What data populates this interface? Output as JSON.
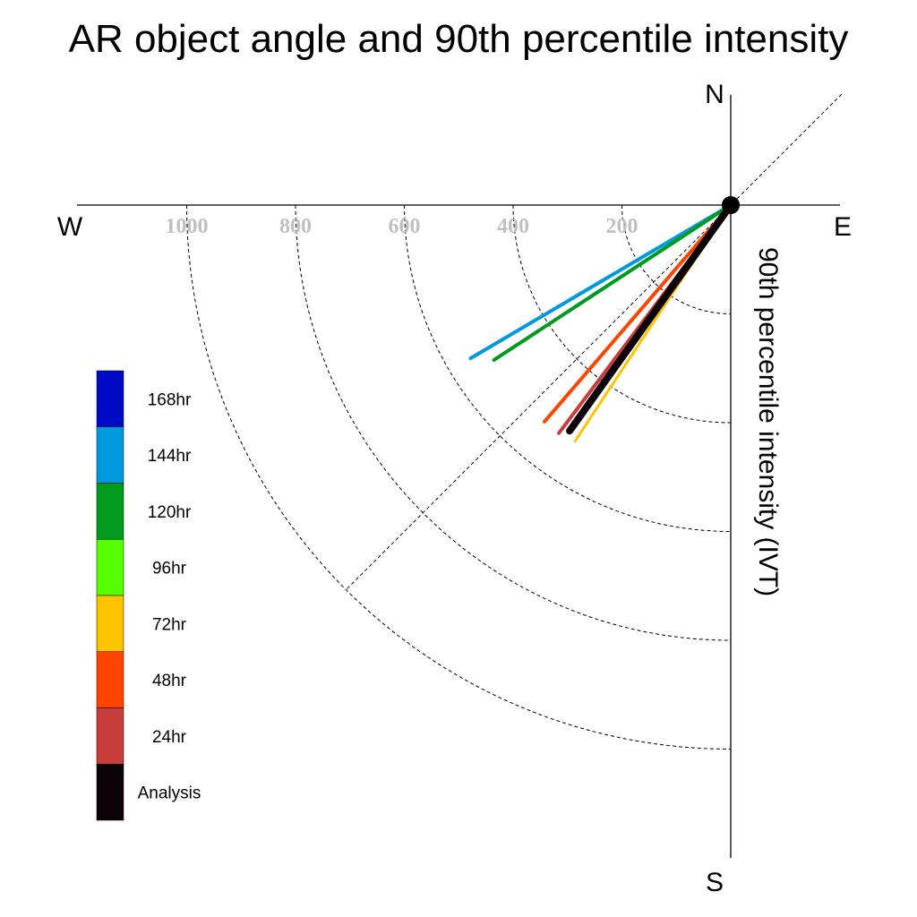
{
  "chart_data": {
    "type": "polar-vector",
    "title": "AR object angle and 90th percentile intensity",
    "ylabel": "90th percentile intensity (IVT)",
    "compass": {
      "north": "N",
      "south": "S",
      "east": "E",
      "west": "W"
    },
    "radial_ticks": [
      "1000",
      "800",
      "600",
      "400",
      "200"
    ],
    "radial_tick_values": [
      1000,
      800,
      600,
      400,
      200
    ],
    "radial_max": 1000,
    "reference_angle_deg": 45,
    "series": [
      {
        "name": "144hr",
        "color": "#0099dd",
        "angle_deg": 210.5,
        "intensity": 555,
        "width": 4
      },
      {
        "name": "120hr",
        "color": "#009a1e",
        "angle_deg": 213.2,
        "intensity": 520,
        "width": 4
      },
      {
        "name": "48hr",
        "color": "#ff4400",
        "angle_deg": 229.3,
        "intensity": 525,
        "width": 4
      },
      {
        "name": "24hr",
        "color": "#c83c3c",
        "angle_deg": 233.0,
        "intensity": 525,
        "width": 4
      },
      {
        "name": "72hr",
        "color": "#ffc400",
        "angle_deg": 236.6,
        "intensity": 520,
        "width": 3
      },
      {
        "name": "Analysis",
        "color": "#0b0308",
        "angle_deg": 234.5,
        "intensity": 510,
        "width": 8
      }
    ],
    "legend": [
      {
        "label": "168hr",
        "color": "#0009c4"
      },
      {
        "label": "144hr",
        "color": "#0099dd"
      },
      {
        "label": "120hr",
        "color": "#009a1e"
      },
      {
        "label": "96hr",
        "color": "#55ff00"
      },
      {
        "label": "72hr",
        "color": "#ffc400"
      },
      {
        "label": "48hr",
        "color": "#ff4400"
      },
      {
        "label": "24hr",
        "color": "#c83c3c"
      },
      {
        "label": "Analysis",
        "color": "#0b0308"
      }
    ]
  }
}
